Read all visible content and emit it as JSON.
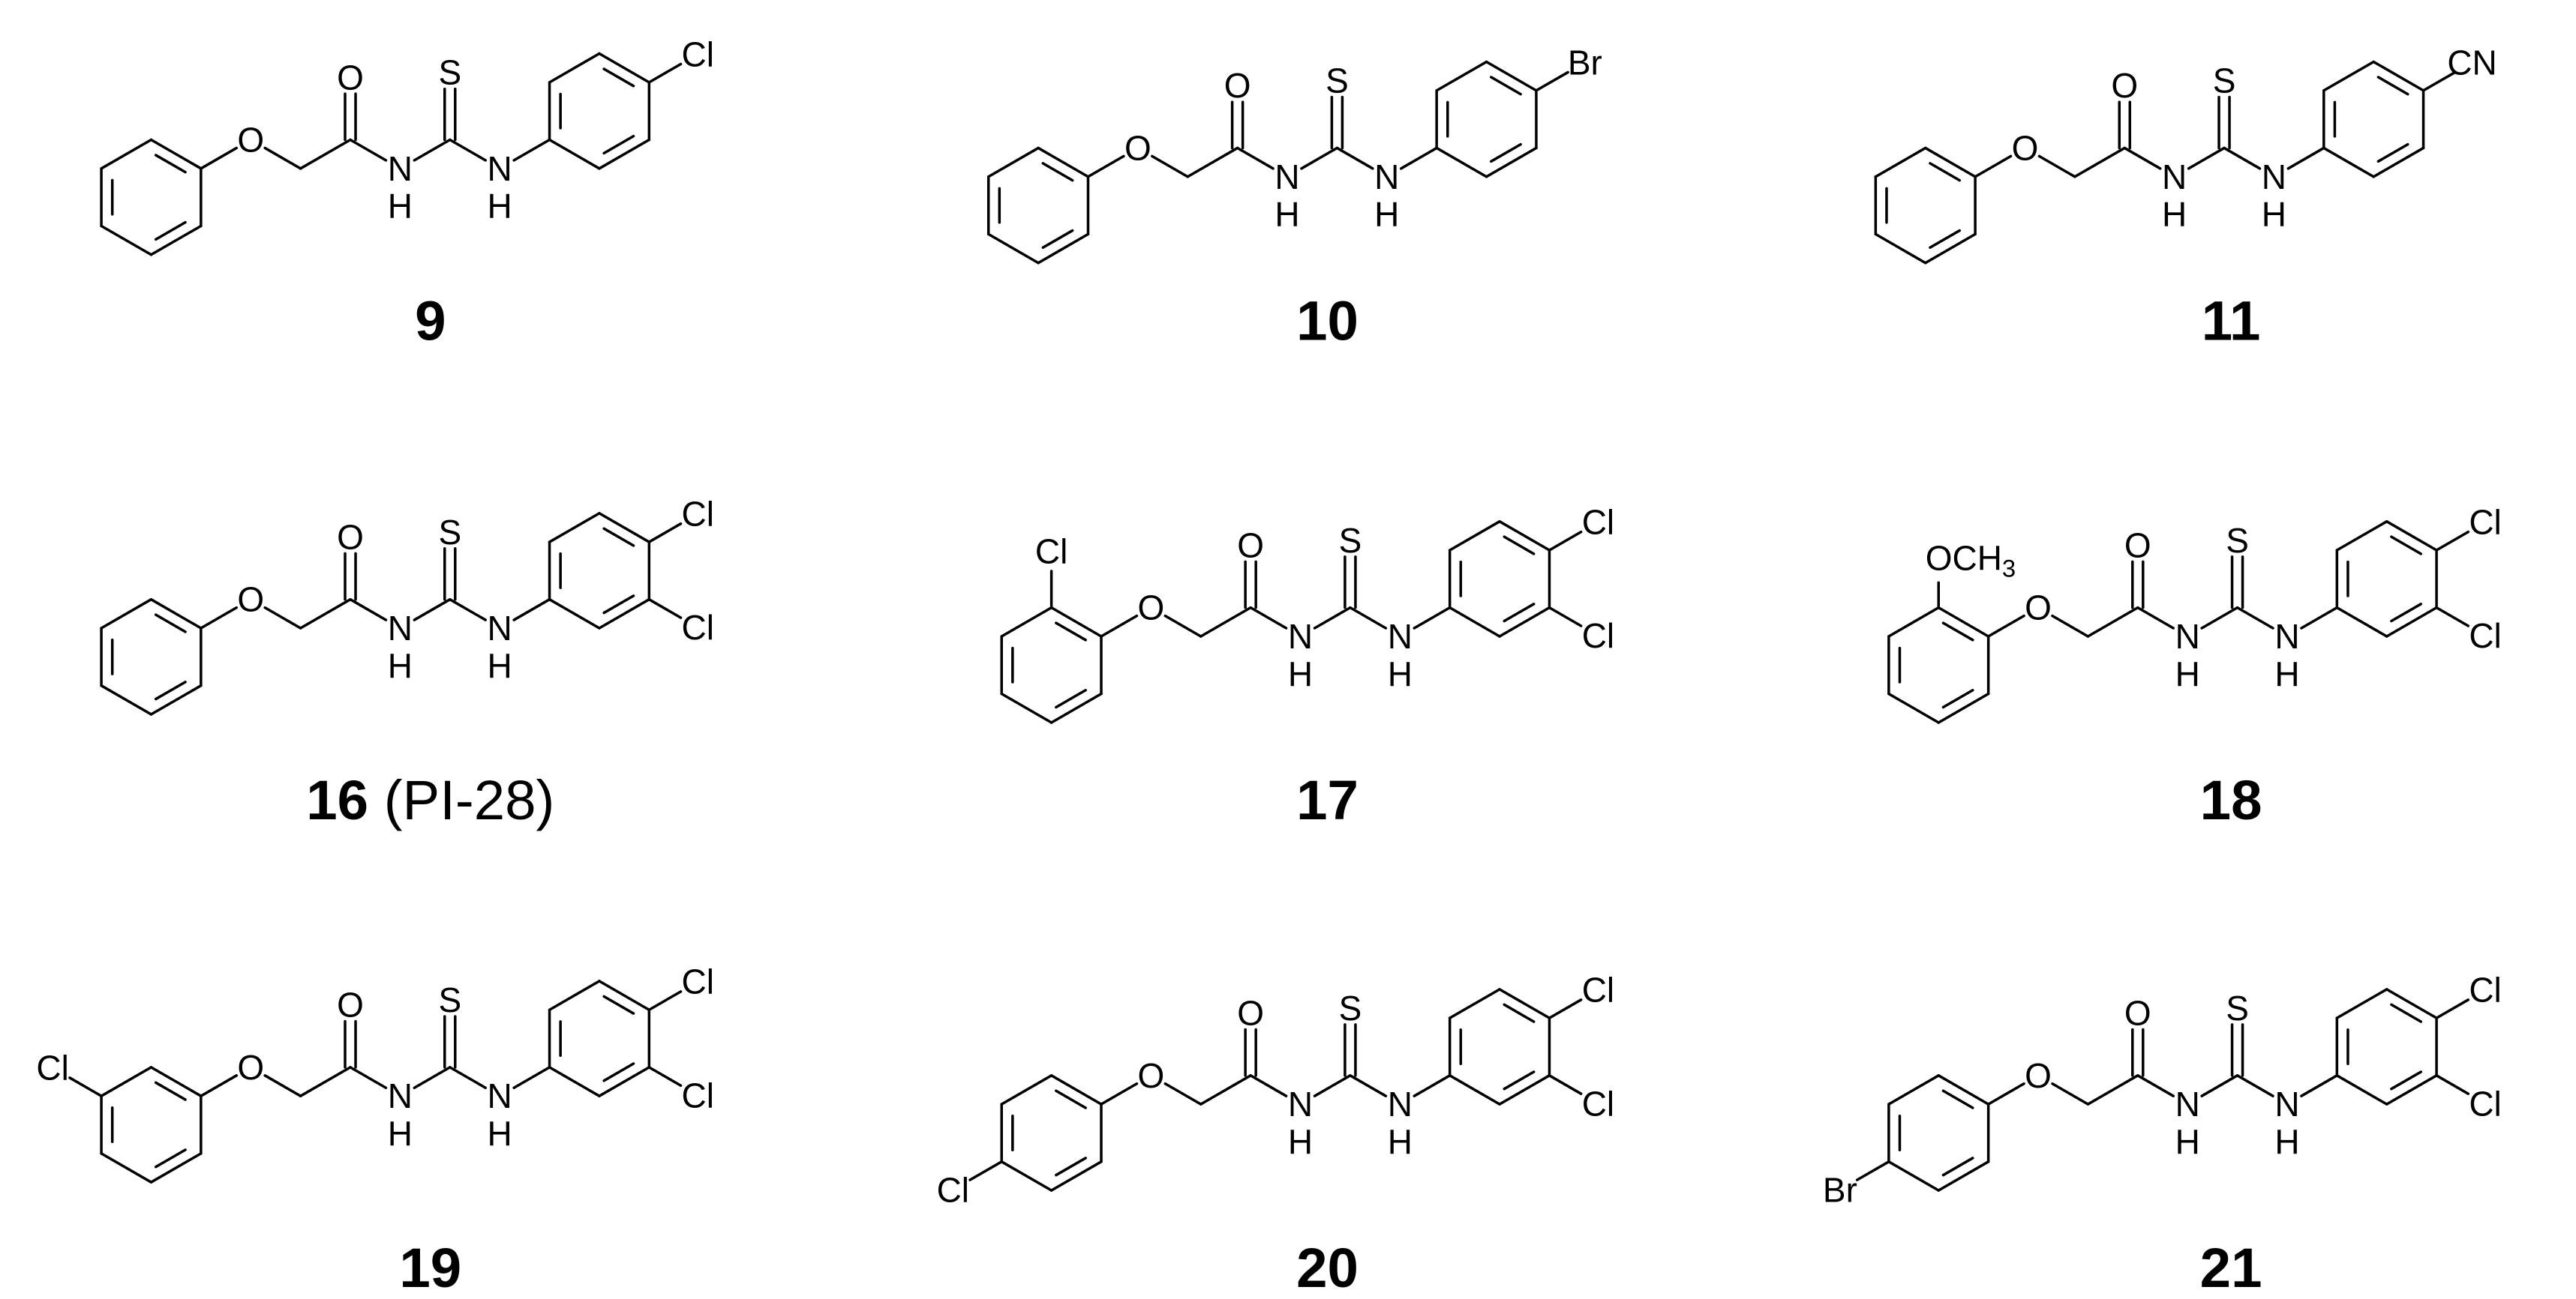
{
  "compounds": [
    {
      "label": "9",
      "atoms": {
        "ether_o": "O",
        "carbonyl_o": "O",
        "thio_s": "S",
        "n1": "N",
        "h1": "H",
        "n2": "N",
        "h2": "H"
      },
      "aryl_substituents": [
        {
          "position": "para",
          "text": "Cl"
        }
      ]
    },
    {
      "label": "10",
      "atoms": {
        "ether_o": "O",
        "carbonyl_o": "O",
        "thio_s": "S",
        "n1": "N",
        "h1": "H",
        "n2": "N",
        "h2": "H"
      },
      "aryl_substituents": [
        {
          "position": "para",
          "text": "Br"
        }
      ]
    },
    {
      "label": "11",
      "atoms": {
        "ether_o": "O",
        "carbonyl_o": "O",
        "thio_s": "S",
        "n1": "N",
        "h1": "H",
        "n2": "N",
        "h2": "H"
      },
      "aryl_substituents": [
        {
          "position": "para",
          "text": "CN"
        }
      ]
    },
    {
      "label": "16",
      "note": "(PI-28)",
      "atoms": {
        "ether_o": "O",
        "carbonyl_o": "O",
        "thio_s": "S",
        "n1": "N",
        "h1": "H",
        "n2": "N",
        "h2": "H"
      },
      "aryl_substituents": [
        {
          "position": "para",
          "text": "Cl"
        },
        {
          "position": "meta",
          "text": "Cl"
        }
      ]
    },
    {
      "label": "17",
      "atoms": {
        "ether_o": "O",
        "carbonyl_o": "O",
        "thio_s": "S",
        "n1": "N",
        "h1": "H",
        "n2": "N",
        "h2": "H"
      },
      "phenoxy_substituent": {
        "position": "ortho",
        "text": "Cl"
      },
      "aryl_substituents": [
        {
          "position": "para",
          "text": "Cl"
        },
        {
          "position": "meta",
          "text": "Cl"
        }
      ]
    },
    {
      "label": "18",
      "atoms": {
        "ether_o": "O",
        "carbonyl_o": "O",
        "thio_s": "S",
        "n1": "N",
        "h1": "H",
        "n2": "N",
        "h2": "H"
      },
      "phenoxy_substituent": {
        "position": "ortho",
        "text": "OCH",
        "subscript": "3"
      },
      "aryl_substituents": [
        {
          "position": "para",
          "text": "Cl"
        },
        {
          "position": "meta",
          "text": "Cl"
        }
      ]
    },
    {
      "label": "19",
      "atoms": {
        "ether_o": "O",
        "carbonyl_o": "O",
        "thio_s": "S",
        "n1": "N",
        "h1": "H",
        "n2": "N",
        "h2": "H"
      },
      "phenoxy_substituent": {
        "position": "meta",
        "text": "Cl"
      },
      "aryl_substituents": [
        {
          "position": "para",
          "text": "Cl"
        },
        {
          "position": "meta",
          "text": "Cl"
        }
      ]
    },
    {
      "label": "20",
      "atoms": {
        "ether_o": "O",
        "carbonyl_o": "O",
        "thio_s": "S",
        "n1": "N",
        "h1": "H",
        "n2": "N",
        "h2": "H"
      },
      "phenoxy_substituent": {
        "position": "para",
        "text": "Cl"
      },
      "aryl_substituents": [
        {
          "position": "para",
          "text": "Cl"
        },
        {
          "position": "meta",
          "text": "Cl"
        }
      ]
    },
    {
      "label": "21",
      "atoms": {
        "ether_o": "O",
        "carbonyl_o": "O",
        "thio_s": "S",
        "n1": "N",
        "h1": "H",
        "n2": "N",
        "h2": "H"
      },
      "phenoxy_substituent": {
        "position": "para",
        "text": "Br"
      },
      "aryl_substituents": [
        {
          "position": "para",
          "text": "Cl"
        },
        {
          "position": "meta",
          "text": "Cl"
        }
      ]
    }
  ]
}
